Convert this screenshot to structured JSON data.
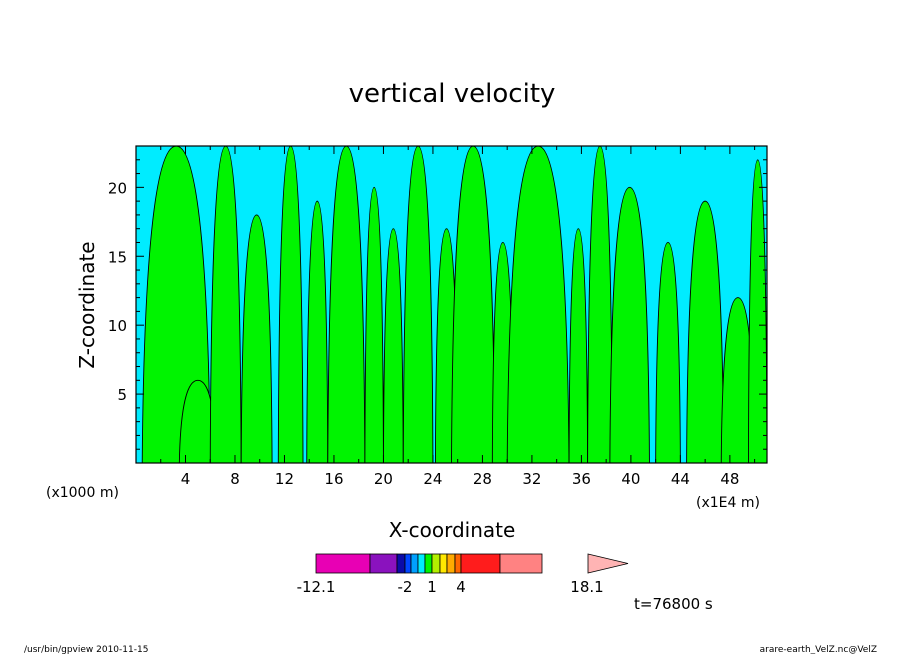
{
  "chart_data": {
    "type": "contour",
    "title": "vertical velocity",
    "xlabel": "X-coordinate",
    "ylabel": "Z-coordinate",
    "x_unit_left": "(x1000 m)",
    "x_unit_right": "(x1E4 m)",
    "xlim": [
      0,
      51
    ],
    "ylim": [
      0,
      23
    ],
    "x_ticks": [
      "4",
      "8",
      "12",
      "16",
      "20",
      "24",
      "28",
      "32",
      "36",
      "40",
      "44",
      "48"
    ],
    "y_ticks": [
      "5",
      "10",
      "15",
      "20"
    ],
    "background_color": "#00ecff",
    "positive_color": "#00f400",
    "regions": [
      {
        "x_start": 0.5,
        "x_end": 6.0,
        "z_peak": 23
      },
      {
        "x_start": 3.5,
        "x_end": 6.5,
        "z_peak": 6
      },
      {
        "x_start": 6.0,
        "x_end": 8.5,
        "z_peak": 23
      },
      {
        "x_start": 8.5,
        "x_end": 11.0,
        "z_peak": 18
      },
      {
        "x_start": 11.5,
        "x_end": 13.5,
        "z_peak": 23
      },
      {
        "x_start": 13.8,
        "x_end": 15.5,
        "z_peak": 19
      },
      {
        "x_start": 15.5,
        "x_end": 18.5,
        "z_peak": 23
      },
      {
        "x_start": 18.5,
        "x_end": 20.0,
        "z_peak": 20
      },
      {
        "x_start": 20.0,
        "x_end": 21.6,
        "z_peak": 17
      },
      {
        "x_start": 21.6,
        "x_end": 24.0,
        "z_peak": 23
      },
      {
        "x_start": 24.2,
        "x_end": 26.0,
        "z_peak": 17
      },
      {
        "x_start": 25.5,
        "x_end": 29.0,
        "z_peak": 23
      },
      {
        "x_start": 28.8,
        "x_end": 30.5,
        "z_peak": 16
      },
      {
        "x_start": 30.0,
        "x_end": 35.0,
        "z_peak": 23
      },
      {
        "x_start": 35.0,
        "x_end": 36.5,
        "z_peak": 17
      },
      {
        "x_start": 36.5,
        "x_end": 38.5,
        "z_peak": 23
      },
      {
        "x_start": 38.3,
        "x_end": 41.5,
        "z_peak": 20
      },
      {
        "x_start": 42.0,
        "x_end": 44.0,
        "z_peak": 16
      },
      {
        "x_start": 44.5,
        "x_end": 47.5,
        "z_peak": 19
      },
      {
        "x_start": 47.3,
        "x_end": 50.0,
        "z_peak": 12
      },
      {
        "x_start": 49.5,
        "x_end": 51.0,
        "z_peak": 22
      }
    ],
    "colorbar": {
      "colors": [
        "#e800b4",
        "#8a12be",
        "#0b0ba8",
        "#0046ff",
        "#00a0ff",
        "#00ecff",
        "#00f400",
        "#b4f000",
        "#ffe800",
        "#ffaa00",
        "#ff6600",
        "#ff1c1c",
        "#ff8282",
        "#ffb4b4"
      ],
      "tick_labels": [
        "-12.1",
        "-2",
        "1",
        "4",
        "18.1"
      ]
    },
    "time_label": "t=76800 s"
  },
  "footer": {
    "left": "/usr/bin/gpview   2010-11-15",
    "right": "arare-earth_VelZ.nc@VelZ"
  }
}
